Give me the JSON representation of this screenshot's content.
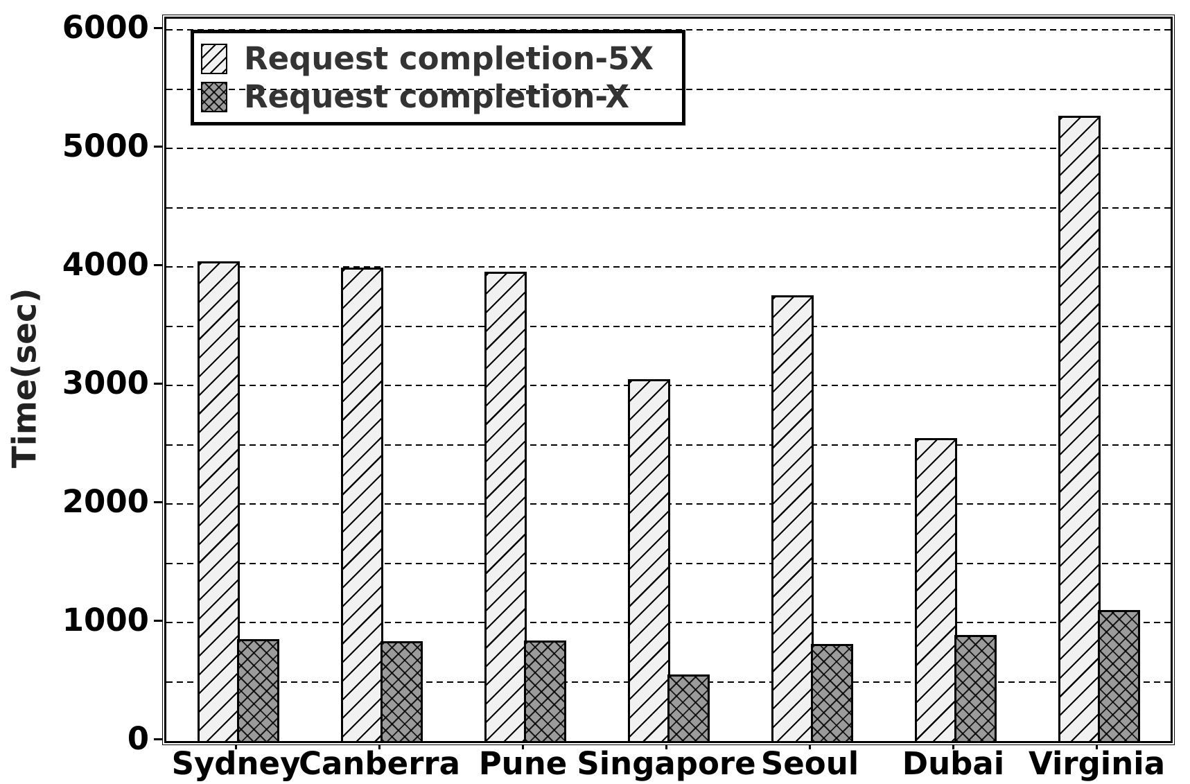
{
  "chart_data": {
    "type": "bar",
    "title": "",
    "categories": [
      "Sydney",
      "Canberra",
      "Pune",
      "Singapore",
      "Seoul",
      "Dubai",
      "Virginia"
    ],
    "series": [
      {
        "name": "Request completion-5X",
        "values": [
          4030,
          3975,
          3940,
          3035,
          3745,
          2540,
          5260
        ],
        "fill": "#f1f1f1",
        "hatch": "diagonal"
      },
      {
        "name": "Request completion-X",
        "values": [
          840,
          825,
          830,
          545,
          800,
          880,
          1090
        ],
        "fill": "#9b9b9b",
        "hatch": "cross-diagonal"
      }
    ],
    "xlabel": "",
    "ylabel": "Time(sec)",
    "ylim": [
      0,
      6095
    ],
    "ytick_values": [
      0,
      1000,
      2000,
      3000,
      4000,
      5000,
      6000
    ],
    "ytick_labels": [
      "0",
      "1000",
      "2000",
      "3000",
      "4000",
      "5000",
      "6000"
    ],
    "gridline_step": 500,
    "grid": "horizontal-dashed",
    "legend_position": "top-left",
    "colors": {
      "hatch_line": "#000000",
      "axis": "#000000",
      "legend_text": "#333333",
      "tick_text": "#000000"
    }
  }
}
